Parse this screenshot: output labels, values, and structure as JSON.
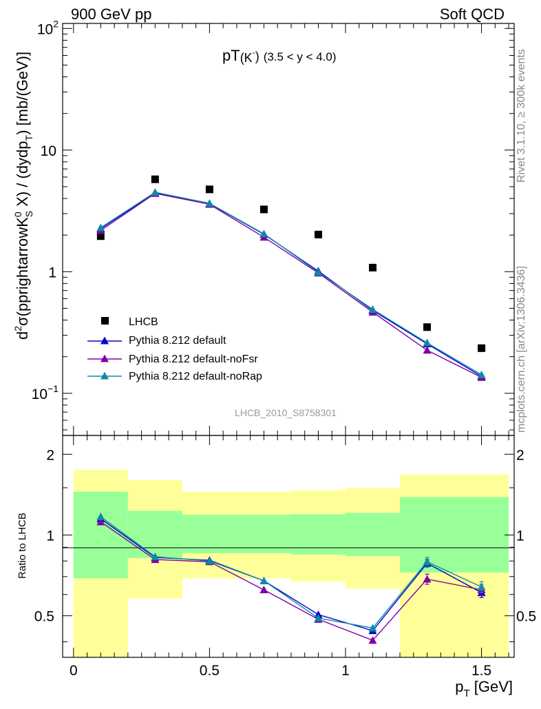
{
  "header": {
    "left": "900 GeV pp",
    "right": "Soft QCD"
  },
  "side": {
    "rivet": "Rivet 3.1.10, ≥ 300k events",
    "mcplots": "mcplots.cern.ch [arXiv:1306.3436]"
  },
  "colors": {
    "data": "#000000",
    "default": "#0000cc",
    "noFsr": "#7f00a5",
    "noRap": "#0e8aa8",
    "band_inner": "#99ff99",
    "band_outer": "#ffff99"
  },
  "chart_data": [
    {
      "type": "line",
      "panel": "main",
      "title_main": "pT",
      "title_sub": "(K",
      "title_sup": "-",
      "title_end": ")",
      "title_range": "(3.5 < y < 4.0)",
      "ylabel": "d²σ(pprightarrowK⁰_S X) / (dydp_T) [mb/(GeV)]",
      "ylabel_parts": {
        "d": "d",
        "sup2": "2",
        "sigma": "σ(pprightarrowK",
        "sup0": "0",
        "subS": "S",
        "mid": " X) / (dydp",
        "subT": "T",
        "end": ") [mb/(GeV)]"
      },
      "yscale": "log",
      "ylim": [
        0.045,
        110
      ],
      "xlim": [
        -0.04,
        1.62
      ],
      "yticks": [
        {
          "value": 100,
          "base": "10",
          "exp": "2"
        },
        {
          "value": 10,
          "base": "10",
          "exp": ""
        },
        {
          "value": 1,
          "base": "1",
          "exp": ""
        },
        {
          "value": 0.1,
          "base": "10",
          "exp": "−1"
        }
      ],
      "watermark": "LHCB_2010_S8758301",
      "legend_position": "bottom-left",
      "x": [
        0.1,
        0.3,
        0.5,
        0.7,
        0.9,
        1.1,
        1.3,
        1.5
      ],
      "series": [
        {
          "name": "LHCB",
          "key": "data",
          "marker": "square",
          "values": [
            1.96,
            5.75,
            4.75,
            3.25,
            2.02,
            1.08,
            0.35,
            0.235
          ]
        },
        {
          "name": "Pythia 8.212 default",
          "key": "default",
          "marker": "triangle",
          "values": [
            2.25,
            4.45,
            3.62,
            2.03,
            1.01,
            0.48,
            0.255,
            0.138
          ]
        },
        {
          "name": "Pythia 8.212 default-noFsr",
          "key": "noFsr",
          "marker": "triangle",
          "values": [
            2.18,
            4.4,
            3.58,
            1.92,
            0.975,
            0.465,
            0.226,
            0.135
          ]
        },
        {
          "name": "Pythia 8.212 default-noRap",
          "key": "noRap",
          "marker": "triangle",
          "values": [
            2.3,
            4.5,
            3.65,
            2.05,
            0.99,
            0.49,
            0.26,
            0.142
          ]
        }
      ]
    },
    {
      "type": "line",
      "panel": "ratio",
      "ylabel": "Ratio to LHCB",
      "xlabel_main": "p",
      "xlabel_sub": "T",
      "xlabel_unit": " [GeV]",
      "ylim": [
        0.35,
        2.35
      ],
      "xlim": [
        -0.04,
        1.62
      ],
      "yscale": "log",
      "yticks": [
        {
          "value": 2,
          "label": "2"
        },
        {
          "value": 1,
          "label": "1"
        },
        {
          "value": 0.5,
          "label": "0.5"
        }
      ],
      "xticks": [
        {
          "value": 0,
          "label": "0"
        },
        {
          "value": 0.5,
          "label": "0.5"
        },
        {
          "value": 1,
          "label": "1"
        },
        {
          "value": 1.5,
          "label": "1.5"
        }
      ],
      "bands": [
        {
          "x0": 0.0,
          "x1": 0.2,
          "inner": [
            0.69,
            1.45
          ],
          "outer": [
            0.345,
            1.75
          ]
        },
        {
          "x0": 0.2,
          "x1": 0.4,
          "inner": [
            0.82,
            1.23
          ],
          "outer": [
            0.58,
            1.6
          ]
        },
        {
          "x0": 0.4,
          "x1": 0.8,
          "inner": [
            0.855,
            1.19
          ],
          "outer": [
            0.69,
            1.45
          ]
        },
        {
          "x0": 0.8,
          "x1": 1.0,
          "inner": [
            0.845,
            1.195
          ],
          "outer": [
            0.67,
            1.47
          ]
        },
        {
          "x0": 1.0,
          "x1": 1.2,
          "inner": [
            0.835,
            1.21
          ],
          "outer": [
            0.63,
            1.5
          ]
        },
        {
          "x0": 1.2,
          "x1": 1.6,
          "inner": [
            0.725,
            1.385
          ],
          "outer": [
            0.345,
            1.68
          ]
        }
      ],
      "x": [
        0.1,
        0.3,
        0.5,
        0.7,
        0.9,
        1.1,
        1.3,
        1.5
      ],
      "series": [
        {
          "name": "Pythia 8.212 default",
          "key": "default",
          "values": [
            1.15,
            0.825,
            0.805,
            0.675,
            0.505,
            0.44,
            0.785,
            0.61
          ],
          "err": [
            0,
            0,
            0,
            0,
            0,
            0,
            0.025,
            0.025
          ]
        },
        {
          "name": "Pythia 8.212 default-noFsr",
          "key": "noFsr",
          "values": [
            1.12,
            0.81,
            0.795,
            0.625,
            0.485,
            0.405,
            0.685,
            0.625
          ],
          "err": [
            0,
            0,
            0,
            0,
            0,
            0,
            0.03,
            0.03
          ]
        },
        {
          "name": "Pythia 8.212 default-noRap",
          "key": "noRap",
          "values": [
            1.17,
            0.83,
            0.8,
            0.675,
            0.49,
            0.45,
            0.795,
            0.64
          ],
          "err": [
            0,
            0,
            0,
            0,
            0,
            0,
            0.03,
            0.03
          ]
        }
      ]
    }
  ]
}
